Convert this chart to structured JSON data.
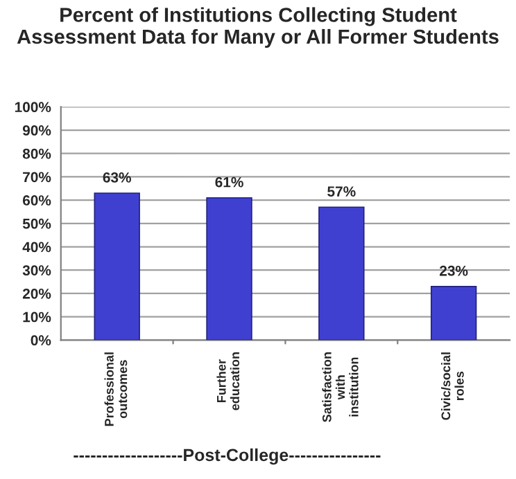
{
  "chart_data": {
    "type": "bar",
    "title": "Percent of Institutions Collecting Student\nAssessment Data for Many or All Former Students",
    "categories": [
      "Professional\noutcomes",
      "Further\neducation",
      "Satisfaction\nwith\ninstitution",
      "Civic/social\nroles"
    ],
    "values": [
      63,
      61,
      57,
      23
    ],
    "color": "#4040d0",
    "value_labels": [
      "63%",
      "61%",
      "57%",
      "23%"
    ],
    "xlabel": "-------------------Post-College----------------",
    "ylim": [
      0,
      100
    ],
    "yticks": [
      {
        "value": 0,
        "label": "0%"
      },
      {
        "value": 10,
        "label": "10%"
      },
      {
        "value": 20,
        "label": "20%"
      },
      {
        "value": 30,
        "label": "30%"
      },
      {
        "value": 40,
        "label": "40%"
      },
      {
        "value": 50,
        "label": "50%"
      },
      {
        "value": 60,
        "label": "60%"
      },
      {
        "value": 70,
        "label": "70%"
      },
      {
        "value": 80,
        "label": "80%"
      },
      {
        "value": 90,
        "label": "90%"
      },
      {
        "value": 100,
        "label": "100%"
      }
    ],
    "grid": "y",
    "legend": false
  }
}
